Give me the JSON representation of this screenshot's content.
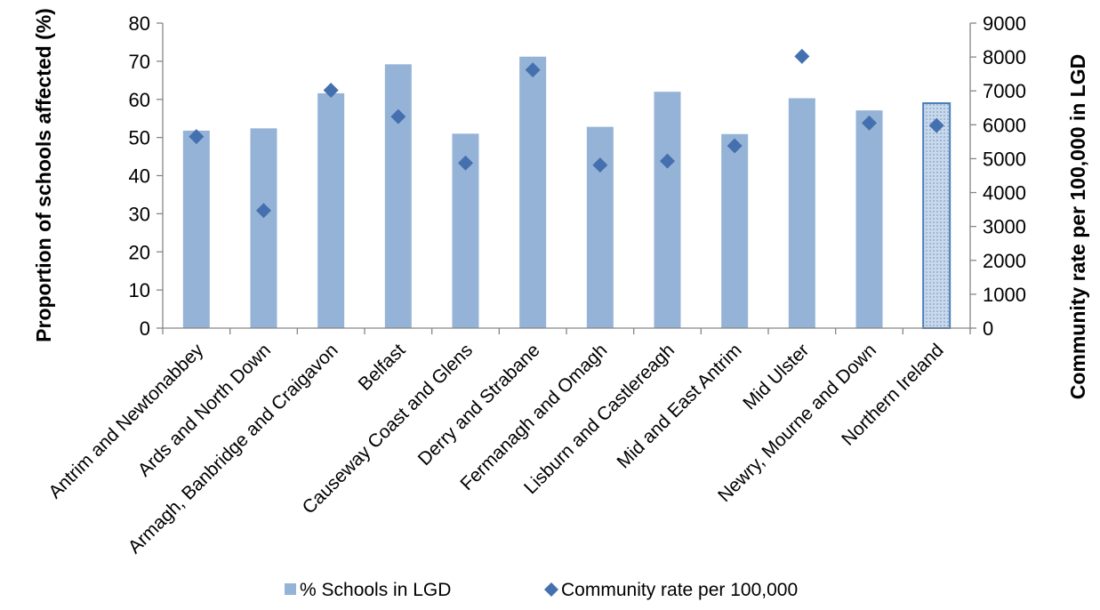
{
  "chart_data": {
    "type": "bar",
    "categories": [
      "Antrim and Newtonabbey",
      "Ards and North Down",
      "Armagh, Banbridge and Craigavon",
      "Belfast",
      "Causeway Coast and Glens",
      "Derry and Strabane",
      "Fermanagh and Omagh",
      "Lisburn and Castlereagh",
      "Mid and East Antrim",
      "Mid Ulster",
      "Newry, Mourne and Down",
      "Northern Ireland"
    ],
    "series": [
      {
        "name": "% Schools in LGD",
        "type": "bar",
        "axis": "left",
        "values": [
          51.8,
          52.4,
          61.6,
          69.2,
          51.0,
          71.2,
          52.8,
          62.0,
          50.9,
          60.3,
          57.1,
          59.0
        ],
        "color": "#95b3d7",
        "highlight_index": 11
      },
      {
        "name": "Community rate per 100,000",
        "type": "scatter",
        "axis": "right",
        "values": [
          5650,
          3470,
          7020,
          6240,
          4870,
          7620,
          4810,
          4930,
          5380,
          8020,
          6050,
          5980
        ],
        "color": "#4470b0",
        "marker": "diamond"
      }
    ],
    "ylabel": "Proportion of schools affected (%)",
    "y2label": "Community rate per 100,000 in LGD",
    "ylim": [
      0,
      80
    ],
    "yticks": [
      "0",
      "10",
      "20",
      "30",
      "40",
      "50",
      "60",
      "70",
      "80"
    ],
    "y2lim": [
      0,
      9000
    ],
    "y2ticks": [
      "0",
      "1000",
      "2000",
      "3000",
      "4000",
      "5000",
      "6000",
      "7000",
      "8000",
      "9000"
    ],
    "grid": false,
    "legend": "bottom"
  }
}
